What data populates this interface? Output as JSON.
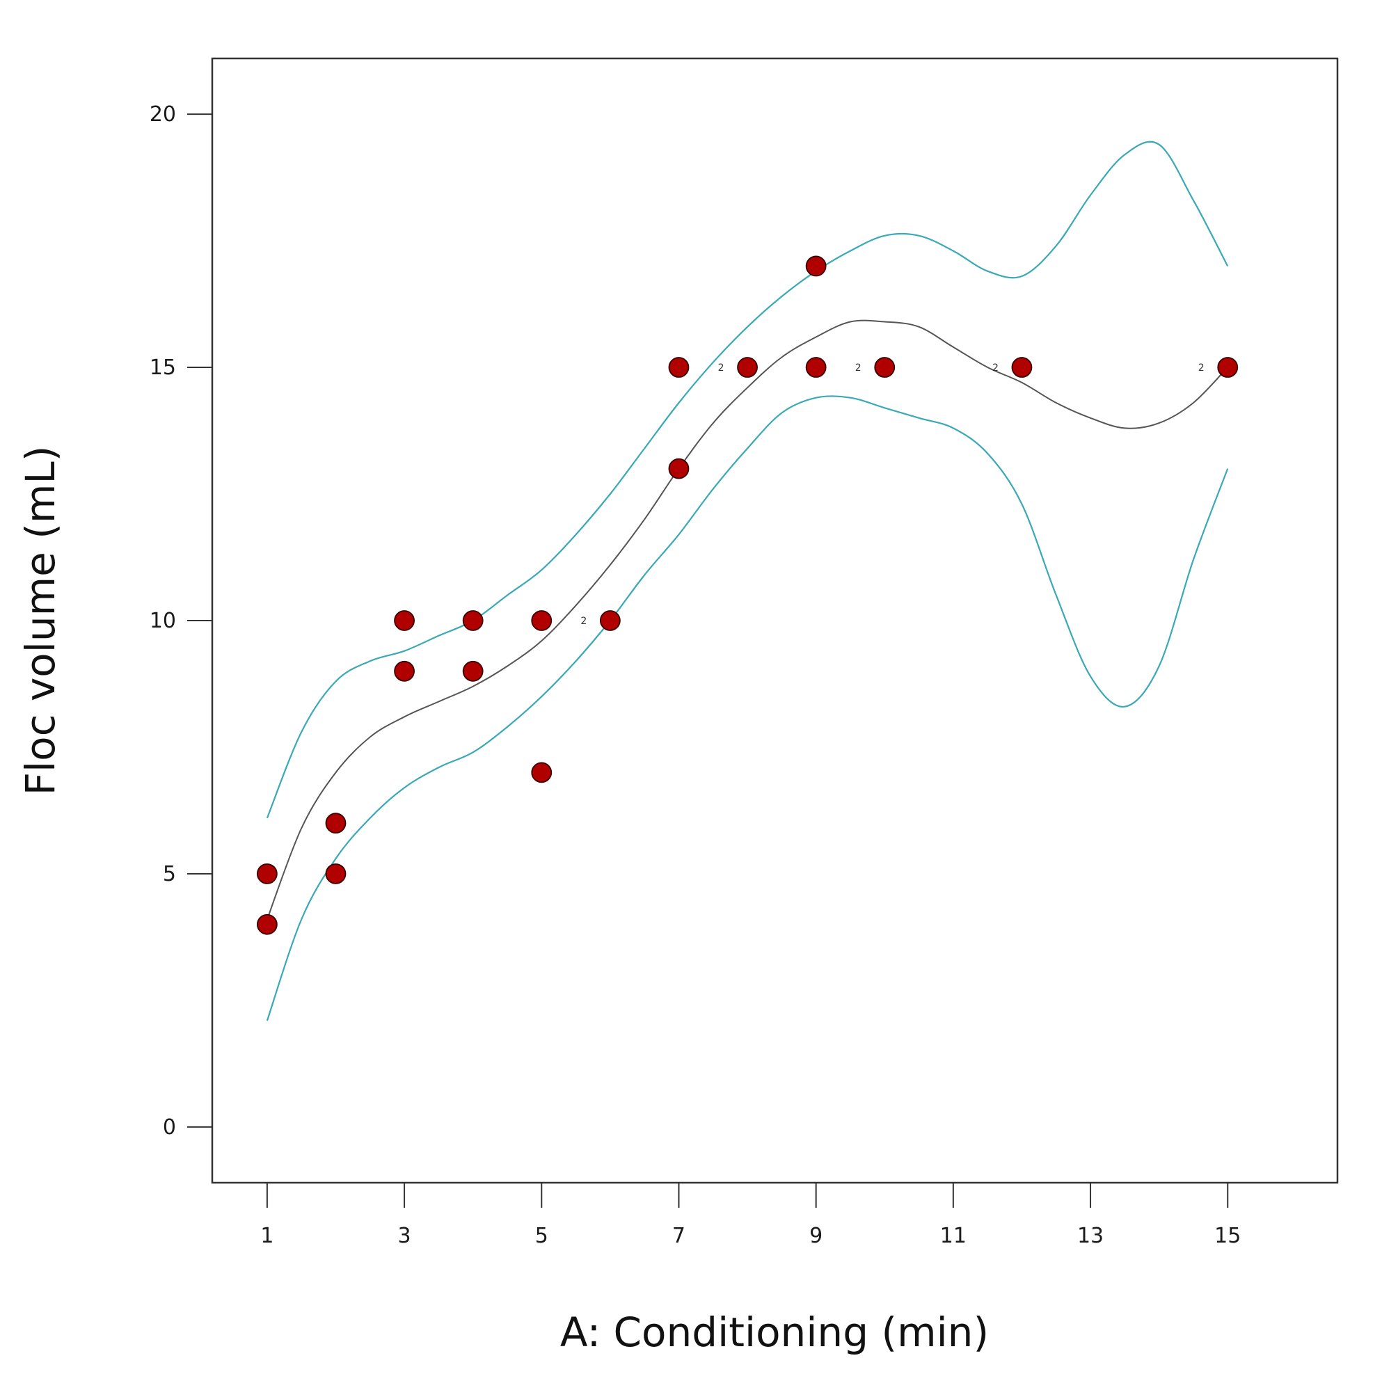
{
  "chart_data": {
    "type": "scatter",
    "title": "",
    "xlabel": "A: Conditioning (min)",
    "ylabel": "Floc volume (mL)",
    "xlim": [
      0.2,
      16.6
    ],
    "ylim": [
      -1.1,
      21.1
    ],
    "xticks": [
      1,
      3,
      5,
      7,
      9,
      11,
      13,
      15
    ],
    "yticks": [
      0,
      5,
      10,
      15,
      20
    ],
    "grid": false,
    "colors": {
      "points": "#b00000",
      "point_stroke": "#3a0000",
      "fit": "#555555",
      "interval": "#3aa9b6",
      "frame": "#333333"
    },
    "points": [
      {
        "x": 1,
        "y": 5
      },
      {
        "x": 1,
        "y": 4
      },
      {
        "x": 2,
        "y": 6
      },
      {
        "x": 2,
        "y": 5
      },
      {
        "x": 3,
        "y": 10
      },
      {
        "x": 3,
        "y": 9
      },
      {
        "x": 4,
        "y": 10
      },
      {
        "x": 4,
        "y": 9
      },
      {
        "x": 5,
        "y": 10
      },
      {
        "x": 5,
        "y": 7
      },
      {
        "x": 6,
        "y": 10,
        "replicates": "2"
      },
      {
        "x": 7,
        "y": 15
      },
      {
        "x": 7,
        "y": 13
      },
      {
        "x": 8,
        "y": 15,
        "replicates": "2"
      },
      {
        "x": 9,
        "y": 17
      },
      {
        "x": 9,
        "y": 15
      },
      {
        "x": 10,
        "y": 15,
        "replicates": "2"
      },
      {
        "x": 12,
        "y": 15,
        "replicates": "2"
      },
      {
        "x": 15,
        "y": 15,
        "replicates": "2"
      }
    ],
    "series": [
      {
        "name": "fit",
        "x": [
          1,
          1.5,
          2,
          2.5,
          3,
          3.5,
          4,
          4.5,
          5,
          5.5,
          6,
          6.5,
          7,
          7.5,
          8,
          8.5,
          9,
          9.5,
          10,
          10.5,
          11,
          11.5,
          12,
          12.5,
          13,
          13.5,
          14,
          14.5,
          15
        ],
        "y": [
          4.1,
          5.9,
          7.0,
          7.7,
          8.1,
          8.4,
          8.7,
          9.1,
          9.6,
          10.3,
          11.1,
          12.0,
          13.0,
          13.9,
          14.6,
          15.2,
          15.6,
          15.9,
          15.9,
          15.8,
          15.4,
          15.0,
          14.7,
          14.3,
          14.0,
          13.8,
          13.9,
          14.3,
          15.0
        ]
      },
      {
        "name": "upper-interval",
        "x": [
          1,
          1.5,
          2,
          2.5,
          3,
          3.5,
          4,
          4.5,
          5,
          5.5,
          6,
          6.5,
          7,
          7.5,
          8,
          8.5,
          9,
          9.5,
          10,
          10.5,
          11,
          11.5,
          12,
          12.5,
          13,
          13.5,
          14,
          14.5,
          15
        ],
        "y": [
          6.1,
          7.8,
          8.8,
          9.2,
          9.4,
          9.7,
          10.0,
          10.5,
          11.0,
          11.7,
          12.5,
          13.4,
          14.3,
          15.1,
          15.8,
          16.4,
          16.9,
          17.3,
          17.6,
          17.6,
          17.3,
          16.9,
          16.8,
          17.4,
          18.4,
          19.2,
          19.4,
          18.3,
          17.0
        ]
      },
      {
        "name": "lower-interval",
        "x": [
          1,
          1.5,
          2,
          2.5,
          3,
          3.5,
          4,
          4.5,
          5,
          5.5,
          6,
          6.5,
          7,
          7.5,
          8,
          8.5,
          9,
          9.5,
          10,
          10.5,
          11,
          11.5,
          12,
          12.5,
          13,
          13.5,
          14,
          14.5,
          15
        ],
        "y": [
          2.1,
          4.1,
          5.3,
          6.1,
          6.7,
          7.1,
          7.4,
          7.9,
          8.5,
          9.2,
          10.0,
          10.9,
          11.7,
          12.6,
          13.4,
          14.1,
          14.4,
          14.4,
          14.2,
          14.0,
          13.8,
          13.3,
          12.3,
          10.5,
          8.9,
          8.3,
          9.1,
          11.2,
          13.0
        ]
      }
    ]
  }
}
